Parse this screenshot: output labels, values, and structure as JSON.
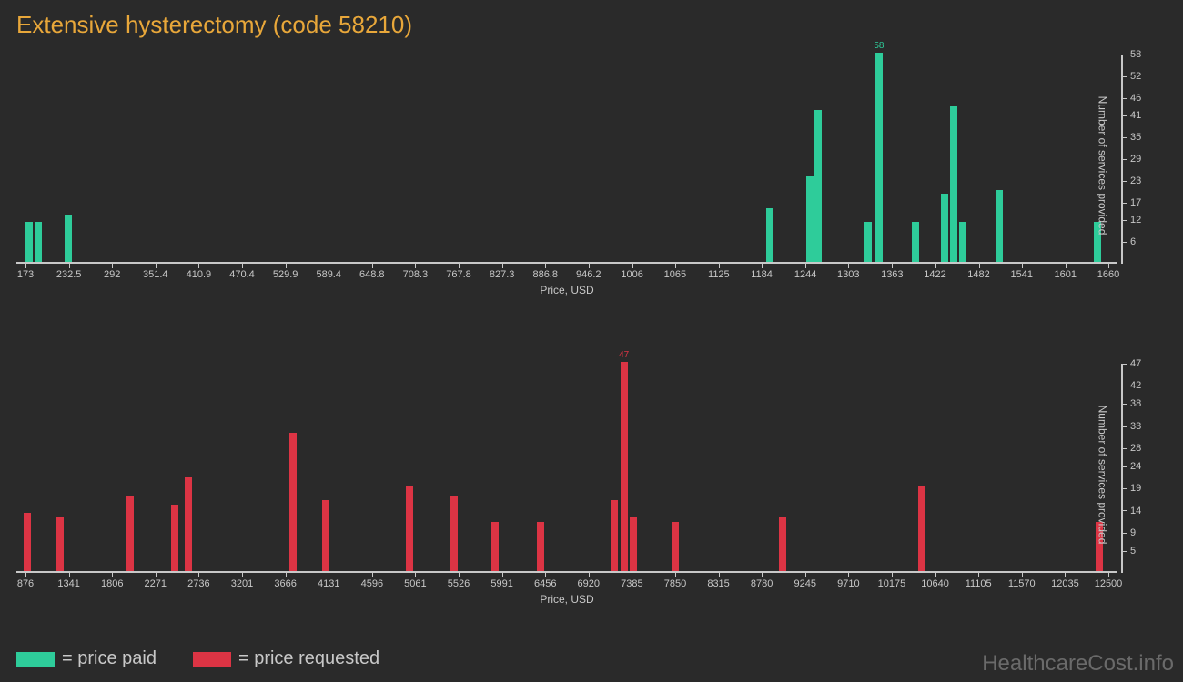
{
  "title": "Extensive hysterectomy (code 58210)",
  "colors": {
    "background": "#2a2a2a",
    "title": "#e8a73a",
    "axis": "#c8c8c8",
    "tick_text": "#c8c8c8",
    "bar_green": "#2ecc9a",
    "bar_red": "#dc3444",
    "watermark": "#6a6a6a"
  },
  "chart1": {
    "type": "bar",
    "bar_color": "#2ecc9a",
    "x_label": "Price, USD",
    "y_label": "Number of services provided",
    "x_min": 173,
    "x_max": 1660,
    "x_ticks": [
      173,
      232.5,
      292,
      351.4,
      410.9,
      470.4,
      529.9,
      589.4,
      648.8,
      708.3,
      767.8,
      827.3,
      886.8,
      946.2,
      1006,
      1065,
      1125,
      1184,
      1244,
      1303,
      1363,
      1422,
      1482,
      1541,
      1601,
      1660
    ],
    "y_min": 0,
    "y_max": 58,
    "y_ticks": [
      6,
      12,
      17,
      23,
      29,
      35,
      41,
      46,
      52,
      58
    ],
    "bars": [
      {
        "x": 178,
        "y": 11
      },
      {
        "x": 190,
        "y": 11
      },
      {
        "x": 232,
        "y": 13
      },
      {
        "x": 1195,
        "y": 15
      },
      {
        "x": 1250,
        "y": 24
      },
      {
        "x": 1262,
        "y": 42
      },
      {
        "x": 1330,
        "y": 11
      },
      {
        "x": 1345,
        "y": 58,
        "label": "58"
      },
      {
        "x": 1395,
        "y": 11
      },
      {
        "x": 1435,
        "y": 19
      },
      {
        "x": 1448,
        "y": 43
      },
      {
        "x": 1460,
        "y": 11
      },
      {
        "x": 1510,
        "y": 20
      },
      {
        "x": 1645,
        "y": 11
      }
    ]
  },
  "chart2": {
    "type": "bar",
    "bar_color": "#dc3444",
    "x_label": "Price, USD",
    "y_label": "Number of services provided",
    "x_min": 876,
    "x_max": 12500,
    "x_ticks": [
      876,
      1341,
      1806,
      2271,
      2736,
      3201,
      3666,
      4131,
      4596,
      5061,
      5526,
      5991,
      6456,
      6920,
      7385,
      7850,
      8315,
      8780,
      9245,
      9710,
      10175,
      10640,
      11105,
      11570,
      12035,
      12500
    ],
    "y_min": 0,
    "y_max": 47,
    "y_ticks": [
      5,
      9,
      14,
      19,
      24,
      28,
      33,
      38,
      42,
      47
    ],
    "bars": [
      {
        "x": 900,
        "y": 13
      },
      {
        "x": 1250,
        "y": 12
      },
      {
        "x": 2000,
        "y": 17
      },
      {
        "x": 2480,
        "y": 15
      },
      {
        "x": 2620,
        "y": 21
      },
      {
        "x": 3750,
        "y": 31
      },
      {
        "x": 4100,
        "y": 16
      },
      {
        "x": 5000,
        "y": 19
      },
      {
        "x": 5480,
        "y": 17
      },
      {
        "x": 5920,
        "y": 11
      },
      {
        "x": 6400,
        "y": 11
      },
      {
        "x": 7200,
        "y": 16
      },
      {
        "x": 7300,
        "y": 47,
        "label": "47"
      },
      {
        "x": 7400,
        "y": 12
      },
      {
        "x": 7850,
        "y": 11
      },
      {
        "x": 9000,
        "y": 12
      },
      {
        "x": 10500,
        "y": 19
      },
      {
        "x": 12400,
        "y": 11
      }
    ]
  },
  "legend": {
    "items": [
      {
        "color": "#2ecc9a",
        "label": "= price paid"
      },
      {
        "color": "#dc3444",
        "label": "= price requested"
      }
    ]
  },
  "watermark": "HealthcareCost.info"
}
